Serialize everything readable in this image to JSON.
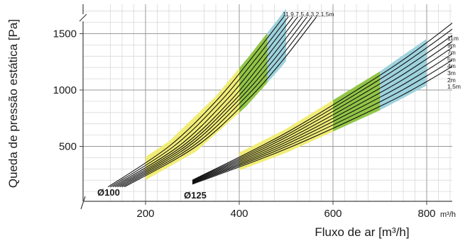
{
  "chart_data": {
    "type": "line",
    "xlabel": "Fluxo de ar [m³/h]",
    "ylabel": "Queda de pressão estática [Pa]",
    "x_unit": "m³/h",
    "xlim": [
      100,
      850
    ],
    "ylim": [
      0,
      1750
    ],
    "x_ticks": [
      200,
      400,
      600,
      800
    ],
    "x_tick_labels": [
      "200",
      "400",
      "600",
      "800"
    ],
    "y_ticks": [
      500,
      1000,
      1500
    ],
    "y_tick_labels": [
      "500",
      "1000",
      "1500"
    ],
    "grid": true,
    "band_colors": {
      "yellow": "#f0eb6f",
      "green": "#8cc23c",
      "blue": "#99d1dc"
    },
    "groups": [
      {
        "name": "Ø100",
        "label": "Ø100",
        "lengths_label": "11,9,7,5,4,3,2,1,5m",
        "bands": [
          {
            "color": "yellow",
            "x_from": 200,
            "x_to": 400
          },
          {
            "color": "green",
            "x_from": 400,
            "x_to": 460
          },
          {
            "color": "blue",
            "x_from": 460,
            "x_to": 500
          }
        ],
        "series": [
          {
            "points": [
              [
                120,
                140
              ],
              [
                250,
                500
              ],
              [
                350,
                900
              ],
              [
                420,
                1250
              ],
              [
                495,
                1650
              ]
            ]
          },
          {
            "points": [
              [
                125,
                140
              ],
              [
                260,
                500
              ],
              [
                360,
                900
              ],
              [
                430,
                1250
              ],
              [
                505,
                1650
              ]
            ]
          },
          {
            "points": [
              [
                130,
                140
              ],
              [
                270,
                500
              ],
              [
                370,
                900
              ],
              [
                440,
                1250
              ],
              [
                515,
                1650
              ]
            ]
          },
          {
            "points": [
              [
                135,
                140
              ],
              [
                278,
                500
              ],
              [
                380,
                900
              ],
              [
                450,
                1250
              ],
              [
                525,
                1650
              ]
            ]
          },
          {
            "points": [
              [
                140,
                140
              ],
              [
                285,
                500
              ],
              [
                388,
                900
              ],
              [
                460,
                1250
              ],
              [
                535,
                1650
              ]
            ]
          },
          {
            "points": [
              [
                145,
                140
              ],
              [
                292,
                500
              ],
              [
                396,
                900
              ],
              [
                470,
                1250
              ],
              [
                545,
                1650
              ]
            ]
          },
          {
            "points": [
              [
                150,
                140
              ],
              [
                300,
                500
              ],
              [
                405,
                900
              ],
              [
                480,
                1250
              ],
              [
                555,
                1650
              ]
            ]
          },
          {
            "points": [
              [
                155,
                140
              ],
              [
                308,
                500
              ],
              [
                415,
                900
              ],
              [
                490,
                1250
              ],
              [
                565,
                1650
              ]
            ]
          }
        ]
      },
      {
        "name": "Ø125",
        "label": "Ø125",
        "bands": [
          {
            "color": "yellow",
            "x_from": 400,
            "x_to": 600
          },
          {
            "color": "green",
            "x_from": 600,
            "x_to": 700
          },
          {
            "color": "blue",
            "x_from": 700,
            "x_to": 800
          }
        ],
        "series": [
          {
            "name": "11m",
            "points": [
              [
                300,
                200
              ],
              [
                500,
                620
              ],
              [
                700,
                1130
              ],
              [
                800,
                1420
              ],
              [
                890,
                1710
              ]
            ]
          },
          {
            "name": "9m",
            "points": [
              [
                300,
                195
              ],
              [
                500,
                600
              ],
              [
                700,
                1095
              ],
              [
                800,
                1375
              ],
              [
                890,
                1650
              ]
            ]
          },
          {
            "name": "7m",
            "points": [
              [
                300,
                190
              ],
              [
                500,
                580
              ],
              [
                700,
                1055
              ],
              [
                800,
                1325
              ],
              [
                890,
                1590
              ]
            ]
          },
          {
            "name": "5m",
            "points": [
              [
                300,
                185
              ],
              [
                500,
                558
              ],
              [
                700,
                1015
              ],
              [
                800,
                1275
              ],
              [
                890,
                1535
              ]
            ]
          },
          {
            "name": "4m",
            "points": [
              [
                300,
                180
              ],
              [
                500,
                538
              ],
              [
                700,
                975
              ],
              [
                800,
                1225
              ],
              [
                890,
                1480
              ]
            ]
          },
          {
            "name": "3m",
            "points": [
              [
                300,
                175
              ],
              [
                500,
                518
              ],
              [
                700,
                935
              ],
              [
                800,
                1175
              ],
              [
                890,
                1420
              ]
            ]
          },
          {
            "name": "2m",
            "points": [
              [
                300,
                170
              ],
              [
                500,
                498
              ],
              [
                700,
                895
              ],
              [
                800,
                1125
              ],
              [
                890,
                1360
              ]
            ]
          },
          {
            "name": "1.5m",
            "points": [
              [
                300,
                165
              ],
              [
                500,
                478
              ],
              [
                700,
                855
              ],
              [
                800,
                1075
              ],
              [
                890,
                1300
              ]
            ]
          }
        ]
      }
    ]
  }
}
